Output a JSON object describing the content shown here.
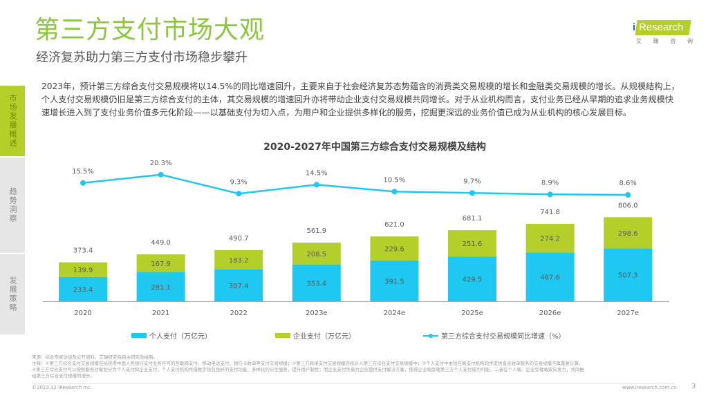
{
  "header": {
    "title": "第三方支付市场大观",
    "subtitle": "经济复苏助力第三方支付市场稳步攀升",
    "logo": {
      "prefix": "i",
      "text": "Research",
      "cn": [
        "艾",
        "瑞",
        "咨",
        "询"
      ]
    }
  },
  "sidebar": {
    "items": [
      {
        "label": "市场发展概述",
        "active": true
      },
      {
        "label": "趋势洞察",
        "active": false
      },
      {
        "label": "发展策略",
        "active": false
      }
    ]
  },
  "intro": "2023年，预计第三方综合支付交易规模将以14.5%的同比增速回升，主要来自于社会经济复苏态势蕴含的消费类交易规模的增长和金融类交易规模的增长。从规模结构上，个人支付交易规模仍旧是第三方综合支付的主体，其交易规模的增速回升亦将带动企业支付交易规模共同增长。对于从业机构而言，支付业务已经从早期的追求业务规模快速增长进入到了支付业务价值多元化阶段——以基础支付为切入点，为用户和企业提供多样化的服务，挖掘更深远的业务价值已成为从业机构的核心发展目标。",
  "colors": {
    "personal": "#1ec8f0",
    "enterprise": "#b5cf2a",
    "growth_line": "#1ec8f0",
    "title_green": "#8cc63f"
  },
  "chart_data": {
    "type": "bar",
    "stacked": true,
    "title": "2020-2027年中国第三方综合支付交易规模及结构",
    "categories": [
      "2020",
      "2021",
      "2022",
      "2023e",
      "2024e",
      "2025e",
      "2026e",
      "2027e"
    ],
    "series": [
      {
        "name": "个人支付（万亿元）",
        "type": "bar",
        "values": [
          233.4,
          281.1,
          307.4,
          353.4,
          391.5,
          429.5,
          467.6,
          507.3
        ]
      },
      {
        "name": "企业支付（万亿元）",
        "type": "bar",
        "values": [
          139.9,
          167.9,
          183.2,
          208.5,
          229.6,
          251.6,
          274.2,
          298.6
        ]
      },
      {
        "name": "第三方综合支付交易规模同比增速（%）",
        "type": "line",
        "values": [
          15.5,
          20.3,
          9.3,
          14.5,
          10.5,
          9.7,
          8.9,
          8.6
        ]
      }
    ],
    "totals": [
      373.4,
      449.0,
      490.7,
      561.9,
      621.0,
      681.1,
      741.8,
      806.0
    ],
    "xlabel": "",
    "ylabel": "",
    "grid": false,
    "legend_position": "bottom"
  },
  "notes": {
    "source": "来源：综合专家访谈及公开资料，艾瑞研究院自主研究及绘制。",
    "note1": "注释：①第三方综合支付交易规模包括获得中国人民银行支付业务许可的互联网支付、移动电话支付、银行卡收单等支付交易规模；②第三方跨境支付交易规模亦统计入第三方综合支付交易规模中；③个人支付中由钱包侧支付机构同步提供直连收单服务的交易规模不再重复计算。",
    "note2": "④第三方综合支付可以按照服务对象划分为个人支付和企业支付，个人支付机构凭借数字钱包良好的支付功能、多样化的衍生服务，提升用户黏性；而企业支付凭借为企业提供支付解决方案，使得企业端受理第三方个人支付成为可能，二者在个人端、企业受理端双向发力，共同推",
    "note3": "动第三方综合支付规模的增长。"
  },
  "footer": {
    "copyright": "©2023.12 iResearch Inc.",
    "website": "www.iresearch.com.cn",
    "page": "3"
  }
}
